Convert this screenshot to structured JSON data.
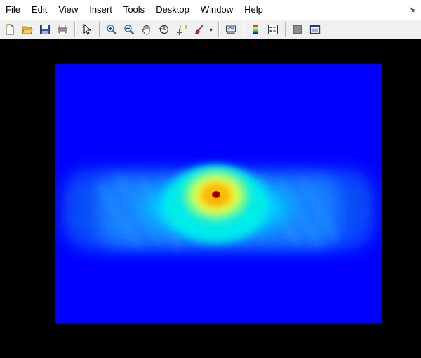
{
  "menubar": {
    "items": [
      {
        "label": "File"
      },
      {
        "label": "Edit"
      },
      {
        "label": "View"
      },
      {
        "label": "Insert"
      },
      {
        "label": "Tools"
      },
      {
        "label": "Desktop"
      },
      {
        "label": "Window"
      },
      {
        "label": "Help"
      }
    ],
    "dock_glyph": "↘"
  },
  "toolbar": {
    "buttons": [
      {
        "name": "new-figure-icon"
      },
      {
        "name": "open-file-icon"
      },
      {
        "name": "save-icon"
      },
      {
        "name": "print-icon"
      },
      {
        "name": "pointer-arrow-icon"
      },
      {
        "name": "zoom-in-icon"
      },
      {
        "name": "zoom-out-icon"
      },
      {
        "name": "pan-hand-icon"
      },
      {
        "name": "rotate-3d-icon"
      },
      {
        "name": "data-cursor-icon"
      },
      {
        "name": "brush-icon"
      },
      {
        "name": "link-plot-icon"
      },
      {
        "name": "colorbar-icon"
      },
      {
        "name": "legend-icon"
      },
      {
        "name": "hide-plot-tools-icon"
      },
      {
        "name": "show-plot-tools-icon"
      }
    ],
    "dropdown_glyph": "▾"
  },
  "figure": {
    "background": "#000000",
    "colormap": "jet",
    "plot_background": "#0000ff",
    "peak_color": "#c00000"
  }
}
